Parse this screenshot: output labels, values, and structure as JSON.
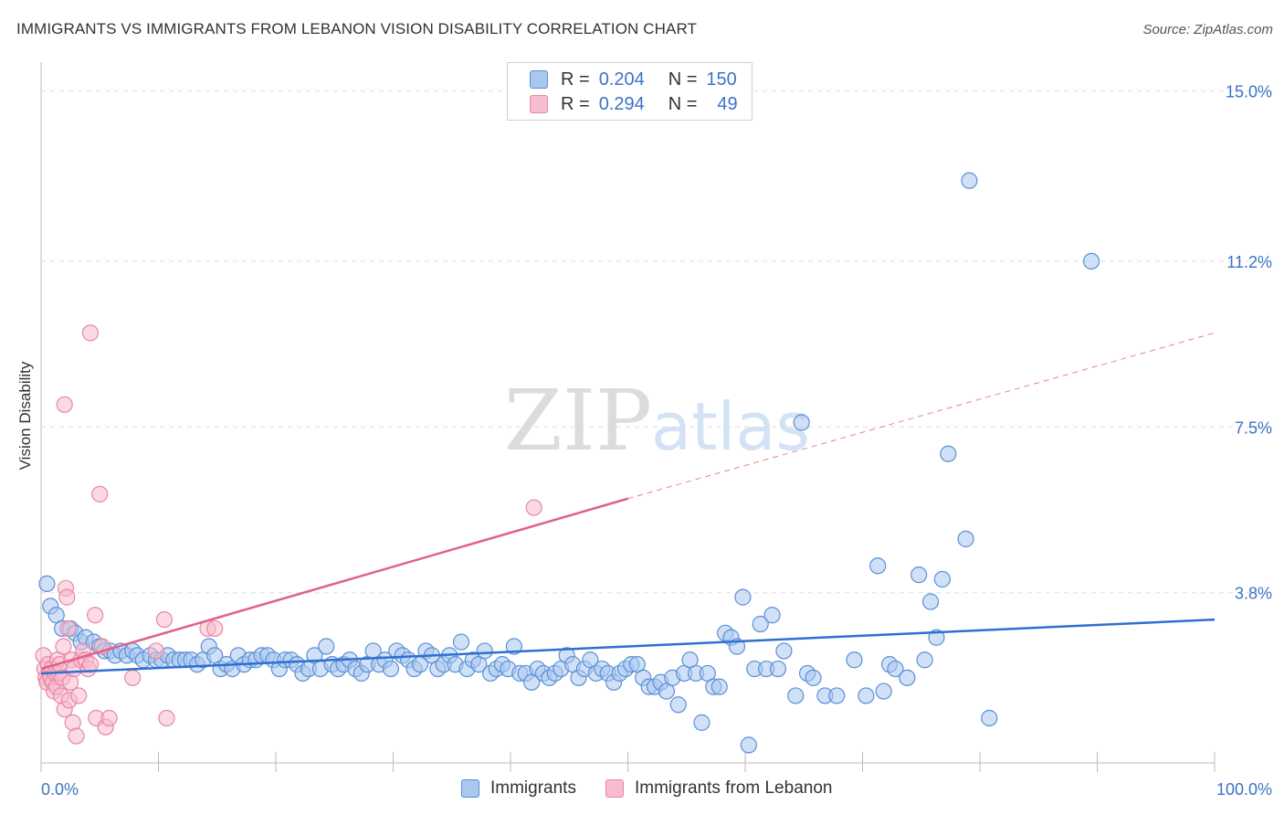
{
  "header": {
    "title": "IMMIGRANTS VS IMMIGRANTS FROM LEBANON VISION DISABILITY CORRELATION CHART",
    "source": "Source: ZipAtlas.com"
  },
  "watermark": {
    "zip": "ZIP",
    "atlas": "atlas"
  },
  "legend": {
    "r_label": "R =",
    "n_label": "N =",
    "rows": [
      {
        "r": "0.204",
        "n": "150",
        "color": "#a9c8f0",
        "border": "#5b8fd6"
      },
      {
        "r": "0.294",
        "n": "49",
        "color": "#f7bccd",
        "border": "#e886a5"
      }
    ]
  },
  "bottom_legend": [
    {
      "label": "Immigrants",
      "color": "#a9c8f0",
      "border": "#5b8fd6"
    },
    {
      "label": "Immigrants from Lebanon",
      "color": "#f7bccd",
      "border": "#e886a5"
    }
  ],
  "chart_data": {
    "type": "scatter",
    "ylabel": "Vision Disability",
    "x_tick_labels": [
      "0.0%",
      "100.0%"
    ],
    "y_tick_labels": [
      "3.8%",
      "7.5%",
      "11.2%",
      "15.0%"
    ],
    "y_ticks": [
      3.8,
      7.5,
      11.2,
      15.0
    ],
    "xlim": [
      0,
      100
    ],
    "ylim": [
      0,
      15.4
    ],
    "grid": "horizontal dashed",
    "legend_position": "top-center",
    "series": [
      {
        "name": "Immigrants",
        "color": "#a9c8f0",
        "stroke": "#5b8fd6",
        "trend": {
          "x0": 0,
          "y0": 2.0,
          "x1": 100,
          "y1": 3.2,
          "color": "#2f6fd0"
        },
        "points": [
          [
            0.5,
            4.0
          ],
          [
            0.8,
            3.5
          ],
          [
            1.3,
            3.3
          ],
          [
            1.8,
            3.0
          ],
          [
            2.5,
            3.0
          ],
          [
            2.9,
            2.9
          ],
          [
            3.4,
            2.7
          ],
          [
            3.8,
            2.8
          ],
          [
            4.5,
            2.7
          ],
          [
            5.0,
            2.6
          ],
          [
            5.4,
            2.5
          ],
          [
            5.9,
            2.5
          ],
          [
            6.3,
            2.4
          ],
          [
            6.8,
            2.5
          ],
          [
            7.3,
            2.4
          ],
          [
            7.8,
            2.5
          ],
          [
            8.2,
            2.4
          ],
          [
            8.7,
            2.3
          ],
          [
            9.3,
            2.4
          ],
          [
            9.8,
            2.3
          ],
          [
            10.3,
            2.3
          ],
          [
            10.8,
            2.4
          ],
          [
            11.3,
            2.3
          ],
          [
            11.8,
            2.3
          ],
          [
            12.3,
            2.3
          ],
          [
            12.8,
            2.3
          ],
          [
            13.3,
            2.2
          ],
          [
            13.8,
            2.3
          ],
          [
            14.3,
            2.6
          ],
          [
            14.8,
            2.4
          ],
          [
            15.3,
            2.1
          ],
          [
            15.8,
            2.2
          ],
          [
            16.3,
            2.1
          ],
          [
            16.8,
            2.4
          ],
          [
            17.3,
            2.2
          ],
          [
            17.8,
            2.3
          ],
          [
            18.3,
            2.3
          ],
          [
            18.8,
            2.4
          ],
          [
            19.3,
            2.4
          ],
          [
            19.8,
            2.3
          ],
          [
            20.3,
            2.1
          ],
          [
            20.8,
            2.3
          ],
          [
            21.3,
            2.3
          ],
          [
            21.8,
            2.2
          ],
          [
            22.3,
            2.0
          ],
          [
            22.8,
            2.1
          ],
          [
            23.3,
            2.4
          ],
          [
            23.8,
            2.1
          ],
          [
            24.3,
            2.6
          ],
          [
            24.8,
            2.2
          ],
          [
            25.3,
            2.1
          ],
          [
            25.8,
            2.2
          ],
          [
            26.3,
            2.3
          ],
          [
            26.8,
            2.1
          ],
          [
            27.3,
            2.0
          ],
          [
            27.8,
            2.2
          ],
          [
            28.3,
            2.5
          ],
          [
            28.8,
            2.2
          ],
          [
            29.3,
            2.3
          ],
          [
            29.8,
            2.1
          ],
          [
            30.3,
            2.5
          ],
          [
            30.8,
            2.4
          ],
          [
            31.3,
            2.3
          ],
          [
            31.8,
            2.1
          ],
          [
            32.3,
            2.2
          ],
          [
            32.8,
            2.5
          ],
          [
            33.3,
            2.4
          ],
          [
            33.8,
            2.1
          ],
          [
            34.3,
            2.2
          ],
          [
            34.8,
            2.4
          ],
          [
            35.3,
            2.2
          ],
          [
            35.8,
            2.7
          ],
          [
            36.3,
            2.1
          ],
          [
            36.8,
            2.3
          ],
          [
            37.3,
            2.2
          ],
          [
            37.8,
            2.5
          ],
          [
            38.3,
            2.0
          ],
          [
            38.8,
            2.1
          ],
          [
            39.3,
            2.2
          ],
          [
            39.8,
            2.1
          ],
          [
            40.3,
            2.6
          ],
          [
            40.8,
            2.0
          ],
          [
            41.3,
            2.0
          ],
          [
            41.8,
            1.8
          ],
          [
            42.3,
            2.1
          ],
          [
            42.8,
            2.0
          ],
          [
            43.3,
            1.9
          ],
          [
            43.8,
            2.0
          ],
          [
            44.3,
            2.1
          ],
          [
            44.8,
            2.4
          ],
          [
            45.3,
            2.2
          ],
          [
            45.8,
            1.9
          ],
          [
            46.3,
            2.1
          ],
          [
            46.8,
            2.3
          ],
          [
            47.3,
            2.0
          ],
          [
            47.8,
            2.1
          ],
          [
            48.3,
            2.0
          ],
          [
            48.8,
            1.8
          ],
          [
            49.3,
            2.0
          ],
          [
            49.8,
            2.1
          ],
          [
            50.3,
            2.2
          ],
          [
            50.8,
            2.2
          ],
          [
            51.3,
            1.9
          ],
          [
            51.8,
            1.7
          ],
          [
            52.3,
            1.7
          ],
          [
            52.8,
            1.8
          ],
          [
            53.3,
            1.6
          ],
          [
            53.8,
            1.9
          ],
          [
            54.3,
            1.3
          ],
          [
            54.8,
            2.0
          ],
          [
            55.3,
            2.3
          ],
          [
            55.8,
            2.0
          ],
          [
            56.3,
            0.9
          ],
          [
            56.8,
            2.0
          ],
          [
            57.3,
            1.7
          ],
          [
            57.8,
            1.7
          ],
          [
            58.3,
            2.9
          ],
          [
            58.8,
            2.8
          ],
          [
            59.3,
            2.6
          ],
          [
            59.8,
            3.7
          ],
          [
            60.3,
            0.4
          ],
          [
            60.8,
            2.1
          ],
          [
            61.3,
            3.1
          ],
          [
            61.8,
            2.1
          ],
          [
            62.3,
            3.3
          ],
          [
            62.8,
            2.1
          ],
          [
            63.3,
            2.5
          ],
          [
            64.3,
            1.5
          ],
          [
            64.8,
            7.6
          ],
          [
            65.3,
            2.0
          ],
          [
            65.8,
            1.9
          ],
          [
            66.8,
            1.5
          ],
          [
            67.8,
            1.5
          ],
          [
            69.3,
            2.3
          ],
          [
            70.3,
            1.5
          ],
          [
            71.3,
            4.4
          ],
          [
            71.8,
            1.6
          ],
          [
            72.3,
            2.2
          ],
          [
            72.8,
            2.1
          ],
          [
            73.8,
            1.9
          ],
          [
            74.8,
            4.2
          ],
          [
            75.3,
            2.3
          ],
          [
            75.8,
            3.6
          ],
          [
            76.3,
            2.8
          ],
          [
            76.8,
            4.1
          ],
          [
            77.3,
            6.9
          ],
          [
            78.8,
            5.0
          ],
          [
            79.1,
            13.0
          ],
          [
            80.8,
            1.0
          ],
          [
            89.5,
            11.2
          ]
        ]
      },
      {
        "name": "Immigrants from Lebanon",
        "color": "#f7bccd",
        "stroke": "#e886a5",
        "trend": {
          "x0": 0,
          "y0": 2.1,
          "x1": 50,
          "y1": 5.9,
          "dash_to_x": 100,
          "dash_to_y": 9.6,
          "color": "#e0608a"
        },
        "points": [
          [
            0.2,
            2.4
          ],
          [
            0.3,
            2.1
          ],
          [
            0.4,
            1.9
          ],
          [
            0.5,
            1.8
          ],
          [
            0.6,
            2.2
          ],
          [
            0.7,
            2.0
          ],
          [
            0.8,
            1.9
          ],
          [
            0.9,
            2.1
          ],
          [
            1.0,
            1.8
          ],
          [
            1.1,
            1.6
          ],
          [
            1.2,
            2.0
          ],
          [
            1.3,
            1.7
          ],
          [
            1.4,
            2.3
          ],
          [
            1.5,
            2.0
          ],
          [
            1.6,
            2.2
          ],
          [
            1.7,
            1.5
          ],
          [
            1.8,
            1.9
          ],
          [
            1.9,
            2.6
          ],
          [
            2.0,
            1.2
          ],
          [
            2.1,
            3.9
          ],
          [
            2.2,
            3.7
          ],
          [
            2.3,
            3.0
          ],
          [
            2.4,
            1.4
          ],
          [
            2.5,
            1.8
          ],
          [
            2.6,
            2.3
          ],
          [
            2.7,
            0.9
          ],
          [
            2.8,
            2.1
          ],
          [
            3.0,
            0.6
          ],
          [
            3.2,
            1.5
          ],
          [
            3.4,
            2.3
          ],
          [
            3.6,
            2.5
          ],
          [
            3.8,
            2.3
          ],
          [
            4.0,
            2.1
          ],
          [
            4.2,
            2.2
          ],
          [
            4.6,
            3.3
          ],
          [
            4.7,
            1.0
          ],
          [
            5.0,
            6.0
          ],
          [
            5.2,
            2.6
          ],
          [
            5.5,
            0.8
          ],
          [
            5.8,
            1.0
          ],
          [
            7.8,
            1.9
          ],
          [
            9.8,
            2.5
          ],
          [
            10.5,
            3.2
          ],
          [
            10.7,
            1.0
          ],
          [
            14.2,
            3.0
          ],
          [
            14.8,
            3.0
          ],
          [
            2.0,
            8.0
          ],
          [
            4.2,
            9.6
          ],
          [
            42.0,
            5.7
          ]
        ]
      }
    ]
  }
}
